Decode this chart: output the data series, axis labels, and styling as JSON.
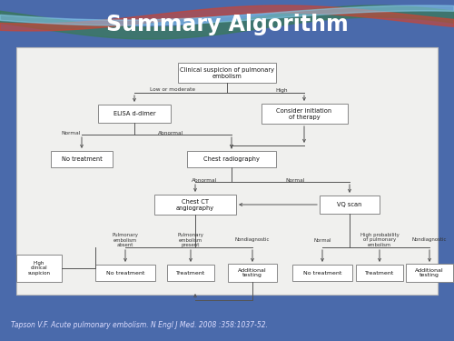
{
  "title": "Summary Algorithm",
  "citation": "Tapson V.F. Acute pulmonary embolism. N Engl J Med. 2008 :358:1037-52.",
  "bg_color": "#4a6aab",
  "title_color": "#ffffff",
  "citation_color": "#ddddff",
  "box_edge": "#888888",
  "box_bg": "#ffffff",
  "line_color": "#555555",
  "label_color": "#333333",
  "content_bg": "#f0f0ee",
  "content_edge": "#bbbbbb"
}
